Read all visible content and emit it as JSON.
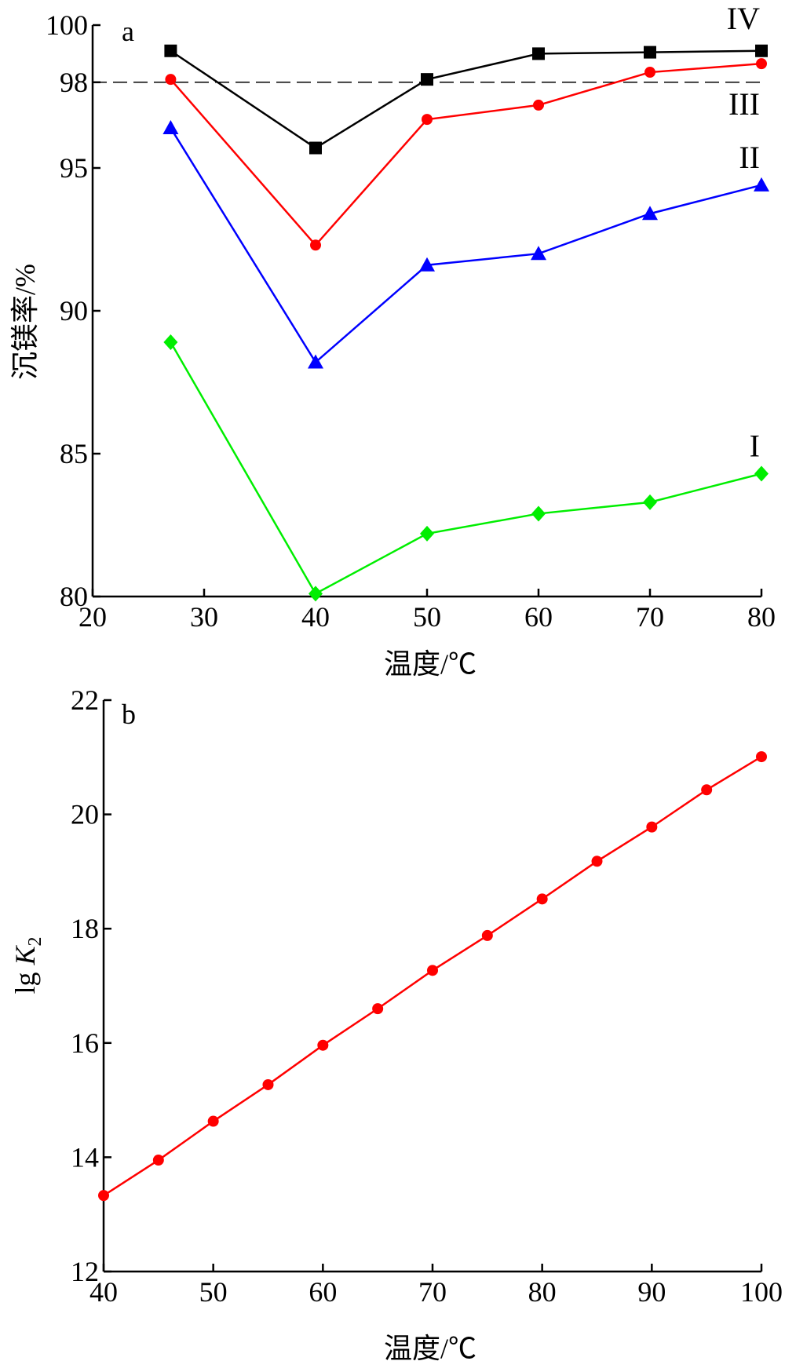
{
  "chart_data": [
    {
      "type": "line",
      "panel_label": "a",
      "xlabel": "温度/℃",
      "ylabel": "沉镁率/%",
      "xlim": [
        20,
        80
      ],
      "ylim": [
        80,
        100
      ],
      "x_ticks": [
        20,
        30,
        40,
        50,
        60,
        70,
        80
      ],
      "y_ticks": [
        80,
        85,
        90,
        95,
        98,
        100
      ],
      "reference_line": {
        "y": 98,
        "style": "dashed",
        "color": "#000000"
      },
      "x": [
        27,
        40,
        50,
        60,
        70,
        80
      ],
      "series": [
        {
          "name": "IV",
          "color": "#000000",
          "marker": "square",
          "values": [
            99.1,
            95.7,
            98.1,
            99.0,
            99.05,
            99.1
          ]
        },
        {
          "name": "III",
          "color": "#ff0000",
          "marker": "circle",
          "values": [
            98.1,
            92.3,
            96.7,
            97.2,
            98.35,
            98.65
          ]
        },
        {
          "name": "II",
          "color": "#0000ff",
          "marker": "triangle",
          "values": [
            96.4,
            88.2,
            91.6,
            92.0,
            93.4,
            94.4
          ]
        },
        {
          "name": "I",
          "color": "#00ee00",
          "marker": "diamond",
          "values": [
            88.9,
            80.1,
            82.2,
            82.9,
            83.3,
            84.3
          ]
        }
      ]
    },
    {
      "type": "line",
      "panel_label": "b",
      "xlabel": "温度/℃",
      "ylabel": "lg K2",
      "ylabel_main": "lg ",
      "ylabel_var": "K",
      "ylabel_sub": "2",
      "xlim": [
        40,
        100
      ],
      "ylim": [
        12,
        22
      ],
      "x_ticks": [
        40,
        50,
        60,
        70,
        80,
        90,
        100
      ],
      "y_ticks": [
        12,
        14,
        16,
        18,
        20,
        22
      ],
      "x": [
        40,
        45,
        50,
        55,
        60,
        65,
        70,
        75,
        80,
        85,
        90,
        95,
        100
      ],
      "series": [
        {
          "color": "#ff0000",
          "marker": "circle",
          "values": [
            13.33,
            13.95,
            14.63,
            15.27,
            15.96,
            16.6,
            17.27,
            17.88,
            18.52,
            19.18,
            19.78,
            20.43,
            21.01
          ]
        }
      ]
    }
  ]
}
